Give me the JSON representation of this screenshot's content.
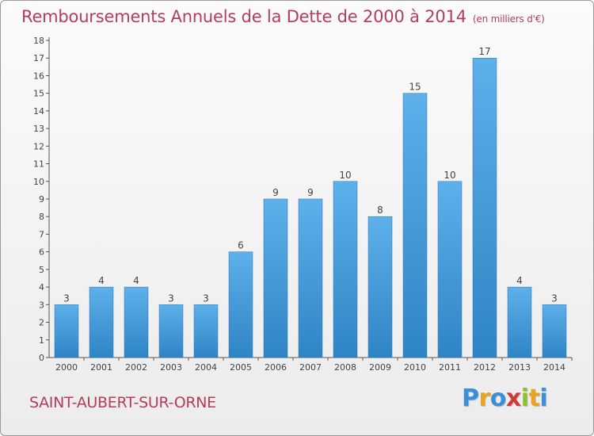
{
  "title": "Remboursements Annuels de la Dette de 2000 à 2014",
  "title_unit": "(en milliers d'€)",
  "city": "SAINT-AUBERT-SUR-ORNE",
  "brand": {
    "letters": [
      "P",
      "r",
      "o",
      "x",
      "i",
      "t",
      "i"
    ],
    "colors": [
      "#3b8fd6",
      "#e8a321",
      "#3b8fd6",
      "#d23a3a",
      "#8fbf2f",
      "#e8a321",
      "#3b8fd6"
    ]
  },
  "colors": {
    "title": "#b43d5b",
    "bar_light": "#5eb0ea",
    "bar_dark": "#2f84c4",
    "text": "#444444"
  },
  "chart_data": {
    "type": "bar",
    "title": "Remboursements Annuels de la Dette de 2000 à 2014",
    "ylabel": "(en milliers d'€)",
    "categories": [
      "2000",
      "2001",
      "2002",
      "2003",
      "2004",
      "2005",
      "2006",
      "2007",
      "2008",
      "2009",
      "2010",
      "2011",
      "2012",
      "2013",
      "2014"
    ],
    "values": [
      3,
      4,
      4,
      3,
      3,
      6,
      9,
      9,
      10,
      8,
      15,
      10,
      17,
      4,
      3
    ],
    "ylim": [
      0,
      18
    ],
    "yticks": [
      0,
      1,
      2,
      3,
      4,
      5,
      6,
      7,
      8,
      9,
      10,
      11,
      12,
      13,
      14,
      15,
      16,
      17,
      18
    ],
    "grid": false,
    "legend": "none"
  }
}
